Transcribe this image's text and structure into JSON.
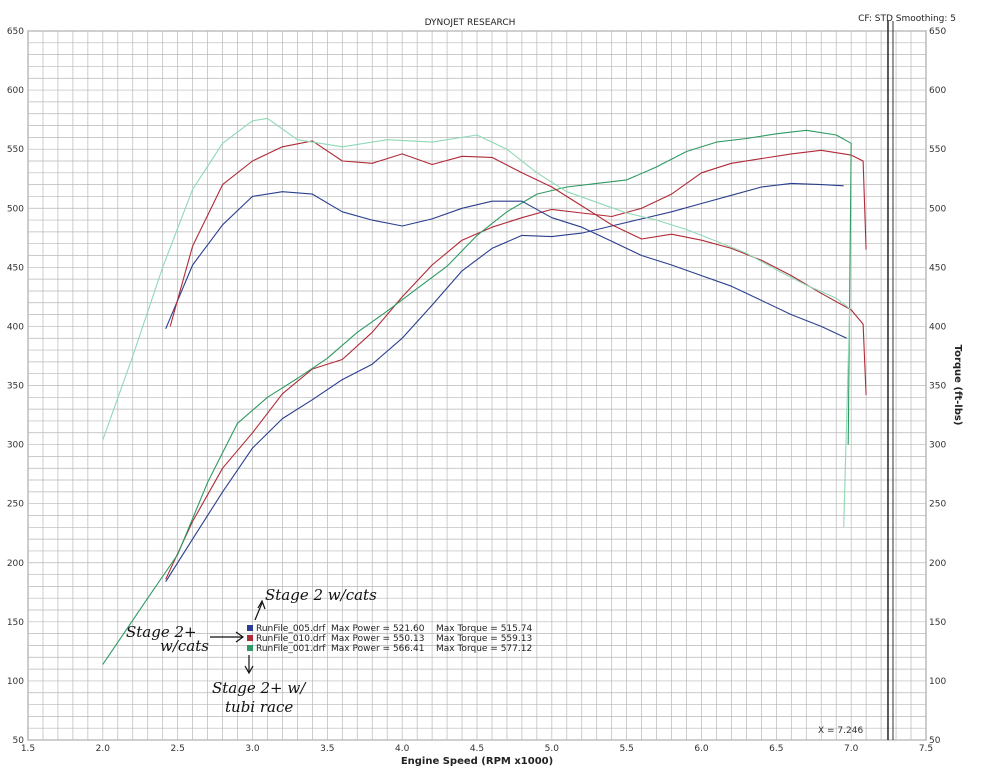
{
  "header": {
    "title": "DYNOJET RESEARCH",
    "settings": "CF: STD  Smoothing: 5"
  },
  "x_readout": "X = 7.246",
  "colors": {
    "blue": "#2a3f8f",
    "red": "#b02a37",
    "green": "#2f9a62",
    "light_green": "#8fd9b6",
    "grid": "#b8b8b8",
    "cursor": "#333333"
  },
  "chart_data": {
    "type": "line",
    "title": "DYNOJET RESEARCH",
    "xlabel": "Engine Speed (RPM x1000)",
    "ylabel_right": "Torque (ft-lbs)",
    "xlim": [
      1.5,
      7.5
    ],
    "ylim": [
      50,
      650
    ],
    "x_ticks": [
      "1.5",
      "2.0",
      "2.5",
      "3.0",
      "3.5",
      "4.0",
      "4.5",
      "5.0",
      "5.5",
      "6.0",
      "6.5",
      "7.0",
      "7.5"
    ],
    "y_ticks": [
      "50",
      "100",
      "150",
      "200",
      "250",
      "300",
      "350",
      "400",
      "450",
      "500",
      "550",
      "600",
      "650"
    ],
    "y_ticks_right": [
      "50",
      "100",
      "150",
      "200",
      "250",
      "300",
      "350",
      "400",
      "450",
      "500",
      "550",
      "600",
      "650"
    ],
    "grid": true,
    "cursor_x": 7.246,
    "legend": [
      {
        "file": "RunFile_005.drf",
        "max_power_label": "Max Power = 521.60",
        "max_torque_label": "Max Torque = 515.74",
        "color": "#2a3f8f"
      },
      {
        "file": "RunFile_010.drf",
        "max_power_label": "Max Power = 550.13",
        "max_torque_label": "Max Torque = 559.13",
        "color": "#b02a37"
      },
      {
        "file": "RunFile_001.drf",
        "max_power_label": "Max Power = 566.41",
        "max_torque_label": "Max Torque = 577.12",
        "color": "#2f9a62"
      }
    ],
    "series": [
      {
        "run": "RunFile_005.drf",
        "measure": "power",
        "color": "#2a3f8f",
        "points": [
          [
            2.42,
            184
          ],
          [
            2.6,
            220
          ],
          [
            2.8,
            260
          ],
          [
            3.0,
            297
          ],
          [
            3.2,
            322
          ],
          [
            3.4,
            338
          ],
          [
            3.6,
            355
          ],
          [
            3.8,
            368
          ],
          [
            4.0,
            390
          ],
          [
            4.2,
            418
          ],
          [
            4.4,
            447
          ],
          [
            4.6,
            466
          ],
          [
            4.8,
            477
          ],
          [
            5.0,
            476
          ],
          [
            5.2,
            479
          ],
          [
            5.4,
            485
          ],
          [
            5.6,
            491
          ],
          [
            5.8,
            497
          ],
          [
            6.0,
            504
          ],
          [
            6.2,
            511
          ],
          [
            6.4,
            518
          ],
          [
            6.6,
            521
          ],
          [
            6.8,
            520
          ],
          [
            6.95,
            519
          ]
        ]
      },
      {
        "run": "RunFile_010.drf",
        "measure": "power",
        "color": "#b02a37",
        "points": [
          [
            2.42,
            186
          ],
          [
            2.6,
            235
          ],
          [
            2.8,
            280
          ],
          [
            3.0,
            310
          ],
          [
            3.2,
            343
          ],
          [
            3.4,
            364
          ],
          [
            3.6,
            372
          ],
          [
            3.8,
            395
          ],
          [
            4.0,
            425
          ],
          [
            4.2,
            452
          ],
          [
            4.4,
            473
          ],
          [
            4.6,
            484
          ],
          [
            4.8,
            492
          ],
          [
            5.0,
            499
          ],
          [
            5.2,
            496
          ],
          [
            5.4,
            493
          ],
          [
            5.6,
            500
          ],
          [
            5.8,
            512
          ],
          [
            6.0,
            530
          ],
          [
            6.2,
            538
          ],
          [
            6.4,
            542
          ],
          [
            6.6,
            546
          ],
          [
            6.8,
            549
          ],
          [
            7.0,
            545
          ],
          [
            7.08,
            540
          ],
          [
            7.1,
            465
          ]
        ]
      },
      {
        "run": "RunFile_001.drf",
        "measure": "power",
        "color": "#2f9a62",
        "points": [
          [
            2.0,
            114
          ],
          [
            2.3,
            170
          ],
          [
            2.5,
            207
          ],
          [
            2.7,
            268
          ],
          [
            2.9,
            318
          ],
          [
            3.1,
            340
          ],
          [
            3.3,
            356
          ],
          [
            3.5,
            373
          ],
          [
            3.7,
            395
          ],
          [
            3.9,
            413
          ],
          [
            4.1,
            432
          ],
          [
            4.3,
            451
          ],
          [
            4.5,
            477
          ],
          [
            4.7,
            497
          ],
          [
            4.9,
            512
          ],
          [
            5.1,
            518
          ],
          [
            5.3,
            521
          ],
          [
            5.5,
            524
          ],
          [
            5.7,
            535
          ],
          [
            5.9,
            548
          ],
          [
            6.1,
            556
          ],
          [
            6.3,
            559
          ],
          [
            6.5,
            563
          ],
          [
            6.7,
            566
          ],
          [
            6.9,
            562
          ],
          [
            7.0,
            555
          ],
          [
            6.98,
            300
          ]
        ]
      },
      {
        "run": "RunFile_005.drf",
        "measure": "torque",
        "color": "#2a3f8f",
        "points": [
          [
            2.42,
            398
          ],
          [
            2.6,
            452
          ],
          [
            2.8,
            486
          ],
          [
            3.0,
            510
          ],
          [
            3.2,
            514
          ],
          [
            3.4,
            512
          ],
          [
            3.6,
            497
          ],
          [
            3.8,
            490
          ],
          [
            4.0,
            485
          ],
          [
            4.2,
            491
          ],
          [
            4.4,
            500
          ],
          [
            4.6,
            506
          ],
          [
            4.8,
            506
          ],
          [
            5.0,
            492
          ],
          [
            5.2,
            484
          ],
          [
            5.4,
            472
          ],
          [
            5.6,
            460
          ],
          [
            5.8,
            452
          ],
          [
            6.0,
            443
          ],
          [
            6.2,
            434
          ],
          [
            6.4,
            422
          ],
          [
            6.6,
            410
          ],
          [
            6.8,
            400
          ],
          [
            6.97,
            390
          ]
        ]
      },
      {
        "run": "RunFile_010.drf",
        "measure": "torque",
        "color": "#b02a37",
        "points": [
          [
            2.45,
            400
          ],
          [
            2.6,
            468
          ],
          [
            2.8,
            520
          ],
          [
            3.0,
            540
          ],
          [
            3.2,
            552
          ],
          [
            3.4,
            557
          ],
          [
            3.6,
            540
          ],
          [
            3.8,
            538
          ],
          [
            4.0,
            546
          ],
          [
            4.2,
            537
          ],
          [
            4.4,
            544
          ],
          [
            4.6,
            543
          ],
          [
            4.8,
            530
          ],
          [
            5.0,
            518
          ],
          [
            5.2,
            502
          ],
          [
            5.4,
            486
          ],
          [
            5.6,
            474
          ],
          [
            5.8,
            478
          ],
          [
            6.0,
            473
          ],
          [
            6.2,
            466
          ],
          [
            6.4,
            456
          ],
          [
            6.6,
            443
          ],
          [
            6.8,
            428
          ],
          [
            7.0,
            414
          ],
          [
            7.08,
            402
          ],
          [
            7.1,
            342
          ]
        ]
      },
      {
        "run": "RunFile_001.drf",
        "measure": "torque",
        "color": "#8fd9b6",
        "points": [
          [
            2.0,
            304
          ],
          [
            2.2,
            375
          ],
          [
            2.4,
            450
          ],
          [
            2.6,
            516
          ],
          [
            2.8,
            555
          ],
          [
            3.0,
            574
          ],
          [
            3.1,
            576
          ],
          [
            3.3,
            558
          ],
          [
            3.6,
            552
          ],
          [
            3.9,
            558
          ],
          [
            4.2,
            556
          ],
          [
            4.5,
            562
          ],
          [
            4.7,
            550
          ],
          [
            4.9,
            530
          ],
          [
            5.1,
            514
          ],
          [
            5.3,
            505
          ],
          [
            5.5,
            496
          ],
          [
            5.7,
            490
          ],
          [
            5.9,
            482
          ],
          [
            6.1,
            472
          ],
          [
            6.3,
            462
          ],
          [
            6.5,
            448
          ],
          [
            6.7,
            435
          ],
          [
            6.9,
            424
          ],
          [
            6.99,
            415
          ],
          [
            6.95,
            230
          ]
        ]
      }
    ],
    "annotations": [
      {
        "text": "Stage 2 w/cats",
        "target_run": "RunFile_005.drf"
      },
      {
        "text": "Stage 2+",
        "target_run": "RunFile_010.drf"
      },
      {
        "text": "w/cats",
        "target_run": "RunFile_010.drf"
      },
      {
        "text": "Stage 2+ w/",
        "target_run": "RunFile_001.drf"
      },
      {
        "text": "tubi race",
        "target_run": "RunFile_001.drf"
      }
    ]
  }
}
